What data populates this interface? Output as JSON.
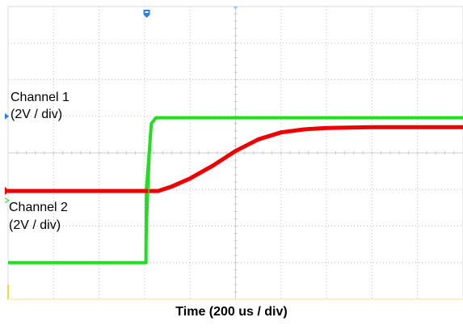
{
  "chart_data": {
    "type": "line",
    "title": "",
    "xlabel": "Time (200 us / div)",
    "ylabel": "",
    "grid": true,
    "grid_divisions": {
      "x": 10,
      "y": 8
    },
    "x_unit": "div",
    "y_unit": "div",
    "xlim": [
      0,
      10
    ],
    "ylim": [
      -4,
      4
    ],
    "series": [
      {
        "label": "Channel 1",
        "scale": "(2V / div)",
        "color": "#22dd22",
        "x": [
          0,
          3.03,
          3.04,
          3.15,
          3.25,
          10
        ],
        "y": [
          -3.0,
          -3.0,
          -1.0,
          0.8,
          0.96,
          0.96
        ]
      },
      {
        "label": "Channel 2",
        "scale": "(2V / div)",
        "color": "#ee0000",
        "x": [
          0,
          3.3,
          3.6,
          4.0,
          4.5,
          5.0,
          5.5,
          6.0,
          6.5,
          7.0,
          8.0,
          9.0,
          10.0
        ],
        "y": [
          -1.04,
          -1.04,
          -0.92,
          -0.7,
          -0.35,
          0.05,
          0.37,
          0.56,
          0.64,
          0.68,
          0.7,
          0.7,
          0.7
        ]
      }
    ]
  }
}
